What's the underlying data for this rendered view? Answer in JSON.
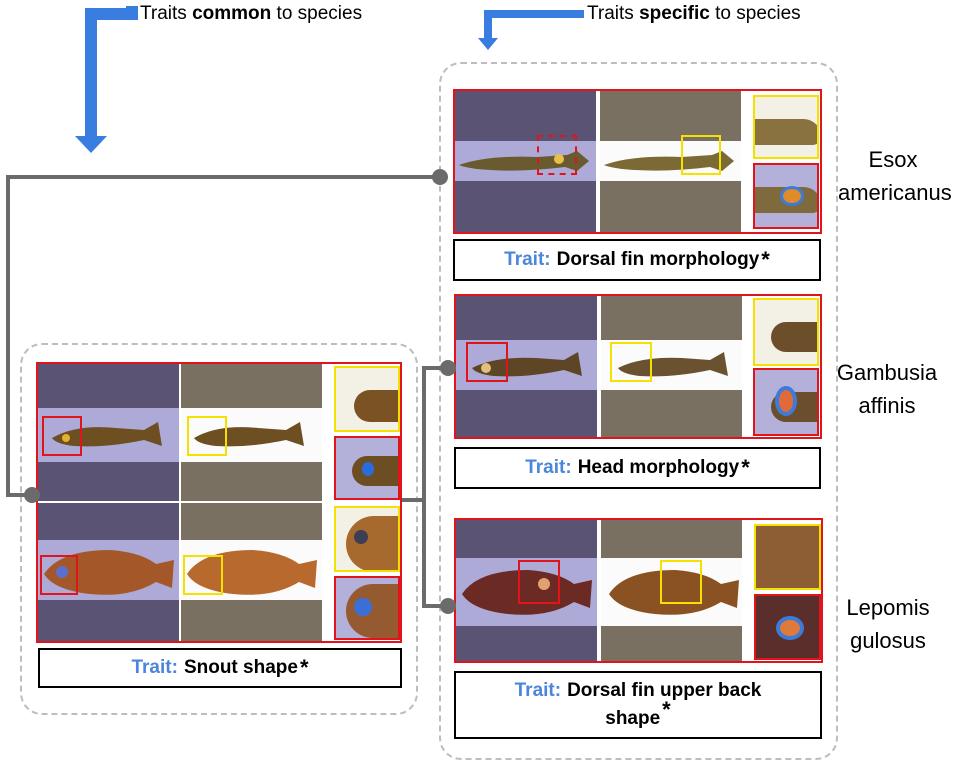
{
  "header": {
    "common_prefix": "Traits ",
    "common_bold": "common",
    "common_suffix": " to species",
    "specific_prefix": "Traits ",
    "specific_bold": "specific",
    "specific_suffix": " to species"
  },
  "colors": {
    "arrow": "#3a7de0",
    "tree": "#6b6b6b",
    "panel_border": "#e0141a",
    "roi_yellow": "#f4e100",
    "trait_prefix": "#4a86d9",
    "group_border": "#bdbdbd"
  },
  "trait_prefix": "Trait:",
  "star": "*",
  "common_group": {
    "trait": "Snout shape"
  },
  "specific_group": [
    {
      "species_line1": "Esox",
      "species_line2": "americanus",
      "trait": "Dorsal fin morphology"
    },
    {
      "species_line1": "Gambusia",
      "species_line2": "affinis",
      "trait": "Head morphology"
    },
    {
      "species_line1": "Lepomis",
      "species_line2": "gulosus",
      "trait_line1": "Dorsal fin upper back",
      "trait_line2": "shape"
    }
  ]
}
